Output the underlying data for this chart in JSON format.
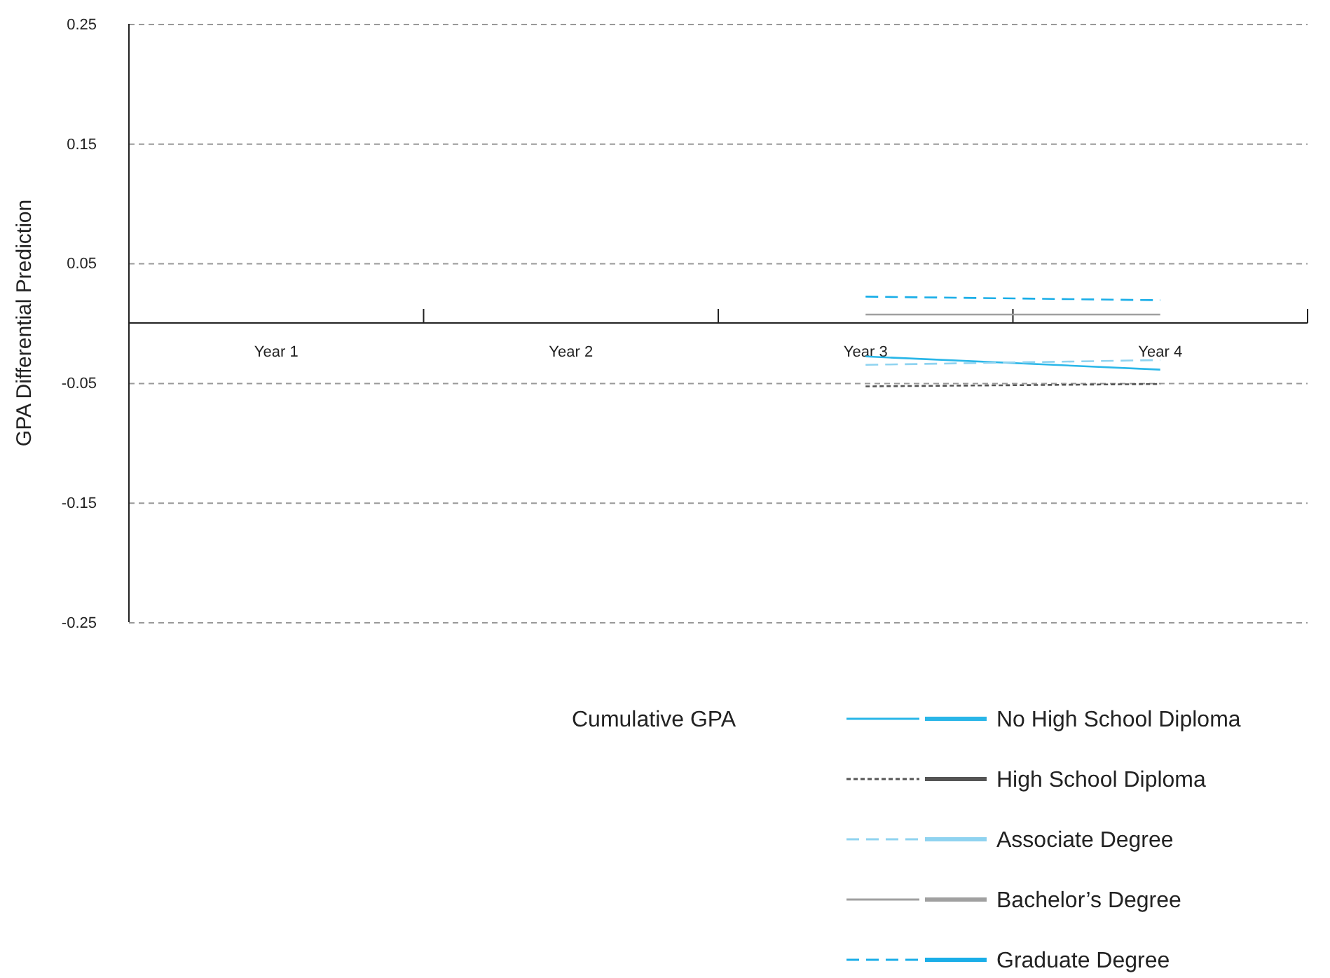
{
  "chart_data": {
    "type": "line",
    "ylabel": "GPA Differential Prediction",
    "legend_title": "Cumulative GPA",
    "categories": [
      "Year 1",
      "Year 2",
      "Year 3",
      "Year 4"
    ],
    "series": [
      {
        "name": "No High School Diploma",
        "color": "#29b6e8",
        "line_style": "solid",
        "values": [
          null,
          null,
          -0.028,
          -0.039
        ]
      },
      {
        "name": "High School Diploma",
        "color": "#555555",
        "line_style": "dotted",
        "values": [
          null,
          null,
          -0.053,
          -0.051
        ]
      },
      {
        "name": "Associate Degree",
        "color": "#8fd3f0",
        "line_style": "dashed",
        "values": [
          null,
          null,
          -0.035,
          -0.031
        ]
      },
      {
        "name": "Bachelor’s Degree",
        "color": "#a0a0a0",
        "line_style": "solid",
        "values": [
          null,
          null,
          0.007,
          0.007
        ]
      },
      {
        "name": "Graduate Degree",
        "color": "#1aaee8",
        "line_style": "dashed",
        "values": [
          null,
          null,
          0.022,
          0.019
        ]
      }
    ],
    "ylim": [
      -0.25,
      0.25
    ],
    "yticks": [
      0.25,
      0.15,
      0.05,
      -0.05,
      -0.15,
      -0.25
    ],
    "grid": "y",
    "legend": "bottom right",
    "marker": "none"
  }
}
